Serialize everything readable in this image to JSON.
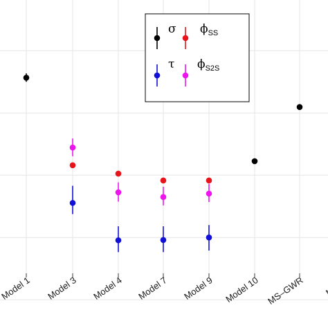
{
  "chart_data": {
    "type": "scatter",
    "title": "",
    "xlabel": "",
    "ylabel": "",
    "grid": true,
    "legend_placement": "top-center",
    "categories": [
      "Model 1",
      "Model 3",
      "Model 4",
      "Model 7",
      "Model 9",
      "Model 10",
      "MS-GWR",
      "MS-G"
    ],
    "y_range": [
      0.05,
      0.95
    ],
    "y_gridlines": [
      0.1,
      0.3,
      0.5,
      0.7,
      0.9
    ],
    "series": [
      {
        "symbol": "σ",
        "subscript": "",
        "color": "#000000",
        "points": [
          {
            "category": "Model 1",
            "value": 0.813,
            "low": 0.8,
            "high": 0.827
          },
          {
            "category": "Model 10",
            "value": 0.545,
            "low": null,
            "high": null
          },
          {
            "category": "MS-GWR",
            "value": 0.719,
            "low": null,
            "high": null
          }
        ]
      },
      {
        "symbol": "ϕ",
        "subscript": "SS",
        "color": "#e8141c",
        "points": [
          {
            "category": "Model 3",
            "value": 0.532,
            "low": null,
            "high": null
          },
          {
            "category": "Model 4",
            "value": 0.505,
            "low": null,
            "high": null
          },
          {
            "category": "Model 7",
            "value": 0.483,
            "low": null,
            "high": null
          },
          {
            "category": "Model 9",
            "value": 0.483,
            "low": null,
            "high": null
          }
        ]
      },
      {
        "symbol": "τ",
        "subscript": "",
        "color": "#1010d8",
        "points": [
          {
            "category": "Model 3",
            "value": 0.411,
            "low": 0.375,
            "high": 0.466
          },
          {
            "category": "Model 4",
            "value": 0.291,
            "low": 0.253,
            "high": 0.336
          },
          {
            "category": "Model 7",
            "value": 0.292,
            "low": 0.253,
            "high": 0.336
          },
          {
            "category": "Model 9",
            "value": 0.3,
            "low": 0.258,
            "high": 0.34
          }
        ]
      },
      {
        "symbol": "ϕ",
        "subscript": "S2S",
        "color": "#ee14ee",
        "points": [
          {
            "category": "Model 3",
            "value": 0.589,
            "low": 0.561,
            "high": 0.618
          },
          {
            "category": "Model 4",
            "value": 0.445,
            "low": 0.415,
            "high": 0.477
          },
          {
            "category": "Model 7",
            "value": 0.43,
            "low": 0.403,
            "high": 0.463
          },
          {
            "category": "Model 9",
            "value": 0.441,
            "low": 0.414,
            "high": 0.472
          }
        ]
      }
    ]
  }
}
